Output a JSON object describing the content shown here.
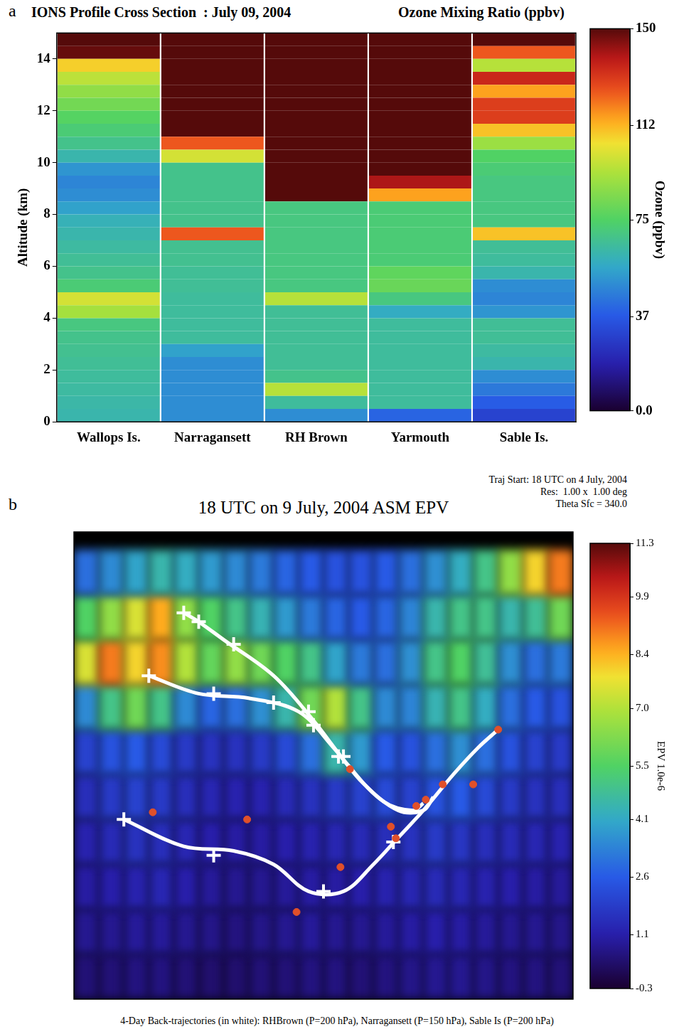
{
  "chart_data": [
    {
      "type": "heatmap",
      "label": "a",
      "title": "IONS Profile Cross Section  : July 09, 2004",
      "subtitle": "Ozone Mixing Ratio (ppbv)",
      "y_label": "Altitude (km)",
      "categories": [
        "Wallops Is.",
        "Narragansett",
        "RH Brown",
        "Yarmouth",
        "Sable Is."
      ],
      "altitude_bins": [
        0,
        0.5,
        1,
        1.5,
        2,
        2.5,
        3,
        3.5,
        4,
        4.5,
        5,
        5.5,
        6,
        6.5,
        7,
        7.5,
        8,
        8.5,
        9,
        9.5,
        10,
        10.5,
        11,
        11.5,
        12,
        12.5,
        13,
        13.5,
        14,
        14.5,
        15
      ],
      "cells": [
        [
          62,
          63,
          64,
          65,
          66,
          67,
          68,
          70,
          92,
          100,
          72,
          68,
          66,
          64,
          62,
          60,
          55,
          50,
          48,
          52,
          62,
          68,
          72,
          76,
          82,
          88,
          96,
          108,
          148,
          150
        ],
        [
          50,
          50,
          50,
          50,
          50,
          55,
          65,
          65,
          65,
          65,
          66,
          66,
          67,
          67,
          125,
          68,
          68,
          68,
          68,
          68,
          100,
          125,
          150,
          150,
          150,
          150,
          150,
          150,
          150,
          150
        ],
        [
          50,
          65,
          95,
          68,
          66,
          66,
          66,
          66,
          66,
          95,
          70,
          70,
          70,
          70,
          70,
          70,
          70,
          150,
          150,
          150,
          150,
          150,
          150,
          150,
          150,
          150,
          150,
          150,
          150,
          150
        ],
        [
          40,
          65,
          65,
          65,
          65,
          65,
          65,
          65,
          58,
          70,
          80,
          78,
          72,
          72,
          72,
          72,
          72,
          115,
          140,
          150,
          150,
          150,
          150,
          150,
          150,
          150,
          150,
          150,
          150,
          150
        ],
        [
          30,
          38,
          45,
          50,
          62,
          64,
          66,
          66,
          52,
          48,
          50,
          62,
          65,
          66,
          110,
          70,
          70,
          70,
          70,
          72,
          75,
          90,
          110,
          130,
          130,
          115,
          135,
          95,
          125,
          150
        ]
      ],
      "ylim": [
        0,
        15
      ],
      "yticks": [
        0,
        2,
        4,
        6,
        8,
        10,
        12,
        14
      ],
      "grid": false,
      "colorbar": {
        "label": "Ozone (ppbv)",
        "range": [
          0,
          150
        ],
        "ticks": [
          {
            "value": 0,
            "label": "0.0"
          },
          37,
          75,
          112,
          150
        ]
      }
    },
    {
      "type": "map",
      "label": "b",
      "title": "18 UTC on 9 July, 2004 ASM EPV",
      "annotations": [
        "Traj Start: 18 UTC on 4 July, 2004",
        "Res:  1.00 x  1.00 deg",
        "Theta Sfc = 340.0"
      ],
      "caption": "4-Day Back-trajectories (in white): RHBrown (P=200 hPa), Narragansett (P=150 hPa), Sable Is (P=200 hPa)",
      "xlim": [
        -140,
        -40
      ],
      "ylim": [
        20,
        72
      ],
      "tick_labels": false,
      "epv": {
        "lon": [
          -137.5,
          -132.5,
          -127.5,
          -122.5,
          -117.5,
          -112.5,
          -107.5,
          -102.5,
          -97.5,
          -92.5,
          -87.5,
          -82.5,
          -77.5,
          -72.5,
          -67.5,
          -62.5,
          -57.5,
          -52.5,
          -47.5,
          -42.5
        ],
        "lat": [
          22.5,
          27.5,
          32.5,
          37.5,
          42.5,
          47.5,
          52.5,
          57.5,
          62.5,
          67.5
        ],
        "values": [
          [
            0.5,
            0.5,
            0.6,
            0.6,
            0.5,
            0.4,
            0.4,
            0.5,
            0.5,
            0.6,
            0.6,
            0.5,
            0.6,
            0.7,
            0.8,
            0.8,
            0.7,
            0.6,
            0.6,
            0.5
          ],
          [
            0.8,
            0.8,
            0.9,
            0.9,
            0.8,
            0.7,
            0.6,
            0.7,
            0.8,
            0.9,
            0.8,
            0.8,
            0.9,
            1.0,
            1.1,
            1.0,
            0.9,
            0.8,
            0.8,
            0.7
          ],
          [
            1.0,
            1.1,
            1.2,
            1.3,
            1.1,
            0.9,
            0.8,
            0.8,
            0.9,
            1.0,
            1.0,
            1.1,
            1.2,
            1.3,
            1.4,
            1.3,
            1.2,
            1.1,
            1.0,
            0.9
          ],
          [
            1.2,
            1.4,
            1.6,
            1.5,
            1.3,
            1.1,
            1.0,
            1.0,
            1.1,
            1.2,
            1.3,
            1.4,
            1.5,
            1.6,
            1.8,
            1.7,
            1.5,
            1.4,
            1.3,
            1.2
          ],
          [
            1.5,
            1.8,
            2.0,
            1.8,
            1.5,
            1.3,
            1.2,
            1.2,
            1.4,
            1.6,
            1.8,
            2.0,
            2.2,
            2.0,
            2.4,
            2.6,
            2.2,
            1.8,
            1.6,
            1.5
          ],
          [
            2.0,
            2.4,
            2.6,
            2.2,
            1.8,
            1.6,
            1.6,
            1.8,
            2.2,
            3.0,
            4.5,
            3.8,
            2.6,
            2.4,
            3.0,
            3.6,
            3.0,
            2.4,
            2.0,
            1.8
          ],
          [
            3.5,
            5.0,
            6.0,
            5.0,
            3.5,
            2.8,
            3.0,
            3.6,
            4.5,
            6.0,
            7.0,
            5.0,
            3.5,
            3.4,
            4.4,
            5.0,
            4.2,
            3.0,
            2.6,
            2.4
          ],
          [
            7.5,
            9.0,
            8.0,
            8.8,
            7.0,
            5.8,
            6.5,
            6.0,
            5.5,
            5.0,
            4.0,
            3.2,
            3.0,
            3.6,
            5.0,
            5.5,
            4.8,
            3.6,
            3.0,
            3.2
          ],
          [
            5.5,
            6.5,
            7.5,
            8.5,
            6.5,
            5.5,
            5.0,
            4.4,
            3.8,
            3.2,
            2.8,
            2.6,
            2.8,
            3.4,
            4.5,
            5.0,
            5.0,
            4.5,
            4.8,
            6.0
          ],
          [
            3.0,
            3.5,
            4.0,
            4.5,
            4.2,
            3.8,
            3.5,
            3.2,
            2.8,
            2.6,
            2.4,
            2.4,
            2.6,
            3.0,
            3.6,
            4.2,
            5.0,
            6.5,
            8.0,
            9.0
          ]
        ]
      },
      "trajectories": [
        {
          "color": "#ffffff",
          "marker": "cross",
          "lon": [
            -118,
            -115,
            -110,
            -100,
            -92,
            -85,
            -78,
            -72,
            -70
          ],
          "lat": [
            63,
            62,
            60,
            56,
            51,
            46,
            42,
            41,
            41.8
          ],
          "daily_lon": [
            -118,
            -115,
            -108,
            -93,
            -87
          ],
          "daily_lat": [
            63,
            62,
            59.5,
            52,
            47
          ]
        },
        {
          "color": "#ffffff",
          "marker": "cross",
          "lon": [
            -125,
            -115,
            -105,
            -95,
            -88,
            -82,
            -75,
            -70,
            -68
          ],
          "lat": [
            56,
            54,
            53.5,
            52,
            48,
            44,
            41,
            41,
            42.5
          ],
          "daily_lon": [
            -125,
            -112,
            -100,
            -92,
            -86
          ],
          "daily_lat": [
            56,
            54,
            53,
            50.5,
            47
          ]
        },
        {
          "color": "#ffffff",
          "marker": "cross",
          "lon": [
            -130,
            -118,
            -108,
            -100,
            -93,
            -86,
            -80,
            -75,
            -70,
            -64,
            -59,
            -55
          ],
          "lat": [
            40,
            37,
            36.5,
            35,
            32,
            32,
            35,
            38,
            41,
            45,
            48,
            50
          ],
          "daily_lon": [
            -130,
            -112,
            -90,
            -76
          ],
          "daily_lat": [
            40,
            36,
            32,
            37.5
          ]
        }
      ],
      "stations": {
        "color": "#e0502a",
        "marker": "circle",
        "lon": [
          -124.2,
          -105.3,
          -95.4,
          -86.6,
          -75.5,
          -76.5,
          -71.4,
          -69.5,
          -66.1,
          -60.0,
          -55.0,
          -84.7
        ],
        "lat": [
          40.8,
          40.0,
          29.7,
          34.7,
          37.9,
          39.2,
          41.5,
          42.2,
          43.9,
          43.9,
          50.0,
          45.6
        ]
      },
      "colorbar": {
        "label": "EPV 1.0e-6",
        "range": [
          -0.3,
          11.3
        ],
        "ticks": [
          -0.3,
          1.1,
          2.6,
          4.1,
          5.5,
          {
            "value": 7,
            "label": "7.0"
          },
          8.4,
          9.9,
          11.3
        ]
      }
    }
  ]
}
